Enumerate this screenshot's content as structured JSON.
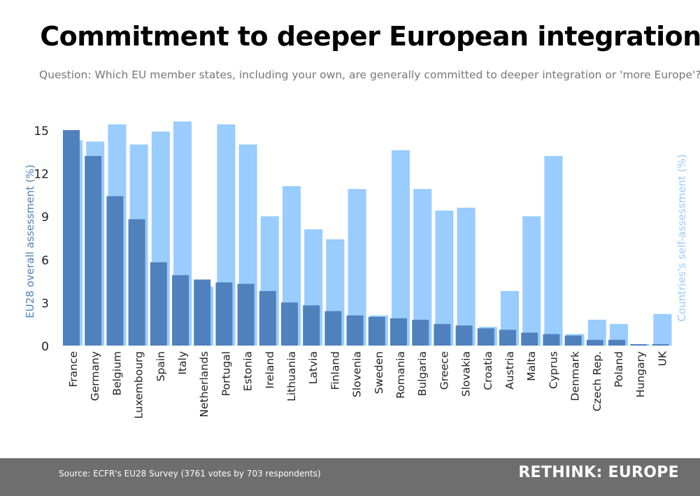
{
  "title": "Commitment to deeper European integration",
  "subtitle": "Question: Which EU member states, including your own, are generally committed to deeper integration or 'more Europe'?",
  "footer": {
    "source": "Source: ECFR's EU28 Survey (3761 votes by 703 respondents)",
    "brand": "RETHINK: EUROPE"
  },
  "colors": {
    "overall": "#4f81bd",
    "self": "#99ccff",
    "left_axis_label": "#4f81bd",
    "right_axis_label": "#99ccff",
    "footer_bg": "#6e6e6e"
  },
  "chart_data": {
    "type": "bar",
    "title": "Commitment to deeper European integration",
    "ylabel": "EU28 overall assessment (%)",
    "y2label": "Countries's self-assessment (%)",
    "ylim": [
      0,
      15
    ],
    "yticks": [
      0,
      3,
      6,
      9,
      12,
      15
    ],
    "grid": false,
    "categories": [
      "France",
      "Germany",
      "Belgium",
      "Luxembourg",
      "Spain",
      "Italy",
      "Netherlands",
      "Portugal",
      "Estonia",
      "Ireland",
      "Lithuania",
      "Latvia",
      "Finland",
      "Slovenia",
      "Sweden",
      "Romania",
      "Bulgaria",
      "Greece",
      "Slovakia",
      "Croatia",
      "Austria",
      "Malta",
      "Cyprus",
      "Denmark",
      "Czech Rep.",
      "Poland",
      "Hungary",
      "UK"
    ],
    "series": [
      {
        "name": "EU28 overall assessment (%)",
        "axis": "left",
        "values": [
          15.0,
          13.2,
          10.4,
          8.8,
          5.8,
          4.9,
          4.6,
          4.4,
          4.3,
          3.8,
          3.0,
          2.8,
          2.4,
          2.1,
          2.0,
          1.9,
          1.8,
          1.5,
          1.4,
          1.2,
          1.1,
          0.9,
          0.8,
          0.7,
          0.4,
          0.4,
          0.1,
          0.1
        ]
      },
      {
        "name": "Countries's self-assessment (%)",
        "axis": "right",
        "values": [
          14.3,
          14.2,
          15.4,
          14.0,
          14.9,
          15.6,
          4.1,
          15.4,
          14.0,
          9.0,
          11.1,
          8.1,
          7.4,
          10.9,
          2.1,
          13.6,
          10.9,
          9.4,
          9.6,
          1.3,
          3.8,
          9.0,
          13.2,
          0.8,
          1.8,
          1.5,
          0.1,
          2.2
        ]
      }
    ]
  }
}
